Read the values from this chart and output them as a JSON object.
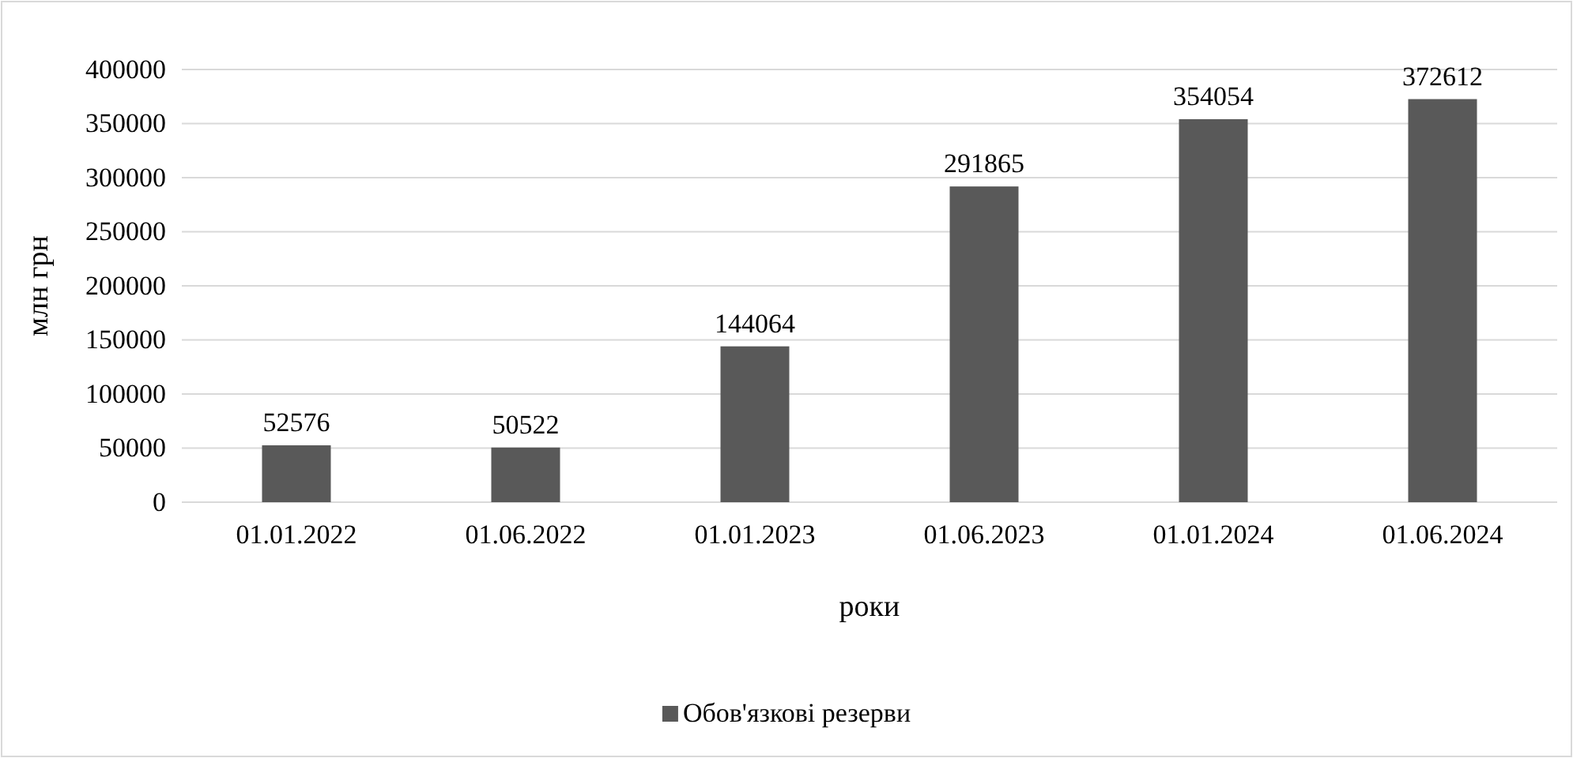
{
  "chart_data": {
    "type": "bar",
    "xlabel": "роки",
    "ylabel": "млн грн",
    "categories": [
      "01.01.2022",
      "01.06.2022",
      "01.01.2023",
      "01.06.2023",
      "01.01.2024",
      "01.06.2024"
    ],
    "series": [
      {
        "name": "Обов'язкові резерви",
        "color": "#595959",
        "values": [
          52576,
          50522,
          144064,
          291865,
          354054,
          372612
        ]
      }
    ],
    "ylim": [
      0,
      400000
    ],
    "yticks": [
      0,
      50000,
      100000,
      150000,
      200000,
      250000,
      300000,
      350000,
      400000
    ],
    "grid": "y",
    "data_labels": true,
    "legend": "bottom"
  }
}
